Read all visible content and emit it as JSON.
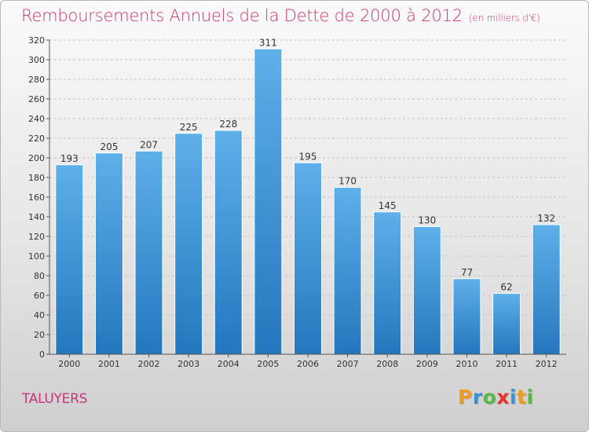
{
  "header": {
    "title": "Remboursements Annuels de la Dette de 2000 à 2012",
    "unit": "(en milliers d'€)"
  },
  "footer": {
    "commune": "TALUYERS",
    "logo_letters": [
      "P",
      "r",
      "o",
      "x",
      "i",
      "t",
      "i"
    ],
    "logo_colors": [
      "#f29a1d",
      "#3a8fd6",
      "#58b847",
      "#e8322e",
      "#3a8fd6",
      "#f29a1d",
      "#58b847"
    ]
  },
  "colors": {
    "bar_top": "#5eb0ea",
    "bar_bottom": "#2477bd",
    "text_accent": "#c8357a"
  },
  "chart_data": {
    "type": "bar",
    "title": "Remboursements Annuels de la Dette de 2000 à 2012",
    "categories": [
      "2000",
      "2001",
      "2002",
      "2003",
      "2004",
      "2005",
      "2006",
      "2007",
      "2008",
      "2009",
      "2010",
      "2011",
      "2012"
    ],
    "values": [
      193,
      205,
      207,
      225,
      228,
      311,
      195,
      170,
      145,
      130,
      77,
      62,
      132
    ],
    "ylim": [
      0,
      320
    ],
    "yticks": [
      0,
      20,
      40,
      60,
      80,
      100,
      120,
      140,
      160,
      180,
      200,
      220,
      240,
      260,
      280,
      300,
      320
    ],
    "grid": true,
    "legend": "none"
  }
}
